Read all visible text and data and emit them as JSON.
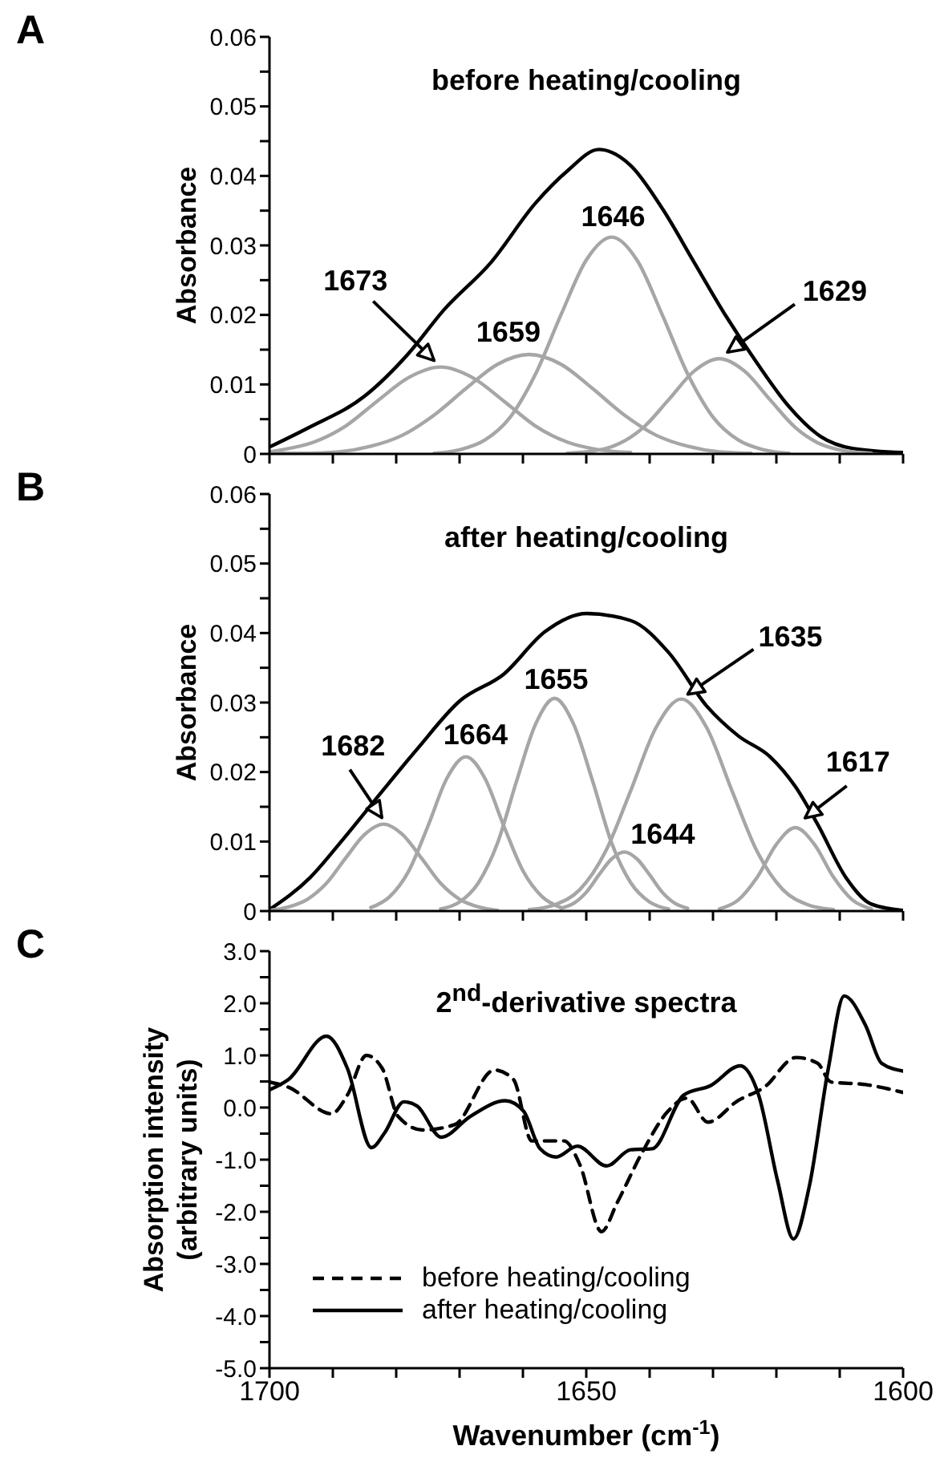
{
  "chart_data": [
    {
      "type": "line",
      "title": "before heating/cooling",
      "ylabel": "Absorbance",
      "tick_labels": "y",
      "xlim": [
        1700,
        1600
      ],
      "xticks": [
        1700,
        {
          "value": 1690,
          "label": null
        },
        {
          "value": 1680,
          "label": null
        },
        {
          "value": 1670,
          "label": null
        },
        {
          "value": 1660,
          "label": null
        },
        1650,
        {
          "value": 1640,
          "label": null
        },
        {
          "value": 1630,
          "label": null
        },
        {
          "value": 1620,
          "label": null
        },
        {
          "value": 1610,
          "label": null
        },
        1600
      ],
      "ylim": [
        0,
        0.06
      ],
      "yticks": [
        0,
        {
          "value": 0.005,
          "label": null
        },
        0.01,
        {
          "value": 0.015,
          "label": null
        },
        0.02,
        {
          "value": 0.025,
          "label": null
        },
        0.03,
        {
          "value": 0.035,
          "label": null
        },
        0.04,
        {
          "value": 0.045,
          "label": null
        },
        0.05,
        {
          "value": 0.055,
          "label": null
        },
        0.06
      ],
      "series": [
        {
          "color": "#000000",
          "x": [
            1700,
            1694,
            1685,
            1678,
            1672.5,
            1665,
            1658,
            1653,
            1648,
            1643,
            1638,
            1633,
            1628,
            1623,
            1618,
            1613,
            1608,
            1600
          ],
          "values": [
            0.001,
            0.0037,
            0.0083,
            0.0145,
            0.0207,
            0.0276,
            0.0361,
            0.0407,
            0.0438,
            0.0415,
            0.0353,
            0.0276,
            0.0199,
            0.013,
            0.0068,
            0.0025,
            0.0008,
            0.0002
          ]
        },
        {
          "color": "#a6a6a6",
          "x": [
            1700,
            1698,
            1693,
            1688,
            1683,
            1678,
            1673,
            1668,
            1663,
            1658,
            1653,
            1648,
            1643
          ],
          "values": [
            0.0003,
            0.0006,
            0.0017,
            0.004,
            0.0076,
            0.011,
            0.0125,
            0.011,
            0.0076,
            0.004,
            0.0017,
            0.0006,
            0.0002
          ]
        },
        {
          "color": "#a6a6a6",
          "x": [
            1700,
            1694,
            1689,
            1684,
            1679,
            1674,
            1669,
            1664,
            1659,
            1654,
            1649,
            1644,
            1639,
            1634,
            1629,
            1624
          ],
          "values": [
            0.0001,
            0.0001,
            0.0003,
            0.0011,
            0.0027,
            0.0056,
            0.0094,
            0.0129,
            0.0143,
            0.0129,
            0.0094,
            0.0056,
            0.0027,
            0.0011,
            0.0003,
            0.0001
          ]
        },
        {
          "color": "#a6a6a6",
          "x": [
            1674,
            1670,
            1666,
            1662,
            1658,
            1654,
            1650,
            1646,
            1642,
            1638,
            1634,
            1630,
            1626,
            1622,
            1618
          ],
          "values": [
            0.0001,
            0.0006,
            0.002,
            0.0053,
            0.0115,
            0.02,
            0.0279,
            0.0312,
            0.0279,
            0.02,
            0.0115,
            0.0053,
            0.002,
            0.0006,
            0.0001
          ]
        },
        {
          "color": "#a6a6a6",
          "x": [
            1653,
            1649,
            1645,
            1641,
            1637,
            1633,
            1629,
            1625,
            1621,
            1617,
            1613,
            1609,
            1605
          ],
          "values": [
            0.0001,
            0.0004,
            0.0014,
            0.0038,
            0.0078,
            0.0119,
            0.0137,
            0.0119,
            0.0078,
            0.0038,
            0.0014,
            0.0004,
            0.0001
          ]
        }
      ],
      "annotations": [
        "A",
        {
          "text": "1673",
          "x": 1673,
          "y": 0.0125
        },
        {
          "text": "1659",
          "x": 1659,
          "y": 0.0143
        },
        {
          "text": "1646",
          "x": 1646,
          "y": 0.0312
        },
        {
          "text": "1629",
          "x": 1629,
          "y": 0.0137
        }
      ]
    },
    {
      "type": "line",
      "title": "after heating/cooling",
      "ylabel": "Absorbance",
      "tick_labels": "y",
      "xlim": [
        1700,
        1600
      ],
      "xticks": [
        1700,
        {
          "value": 1690,
          "label": null
        },
        {
          "value": 1680,
          "label": null
        },
        {
          "value": 1670,
          "label": null
        },
        {
          "value": 1660,
          "label": null
        },
        1650,
        {
          "value": 1640,
          "label": null
        },
        {
          "value": 1630,
          "label": null
        },
        {
          "value": 1620,
          "label": null
        },
        {
          "value": 1610,
          "label": null
        },
        1600
      ],
      "ylim": [
        0,
        0.06
      ],
      "yticks": [
        0,
        {
          "value": 0.005,
          "label": null
        },
        0.01,
        {
          "value": 0.015,
          "label": null
        },
        0.02,
        {
          "value": 0.025,
          "label": null
        },
        0.03,
        {
          "value": 0.035,
          "label": null
        },
        0.04,
        {
          "value": 0.045,
          "label": null
        },
        0.05,
        {
          "value": 0.055,
          "label": null
        },
        0.06
      ],
      "series": [
        {
          "color": "#000000",
          "x": [
            1700,
            1693.6,
            1688.5,
            1682.6,
            1676.7,
            1670,
            1663,
            1656.5,
            1650,
            1643,
            1637,
            1631,
            1626,
            1621,
            1617,
            1613.5,
            1609,
            1605,
            1600
          ],
          "values": [
            0.0002,
            0.0048,
            0.0102,
            0.0168,
            0.0233,
            0.0302,
            0.0341,
            0.0402,
            0.0428,
            0.0418,
            0.0372,
            0.0295,
            0.0252,
            0.0222,
            0.0179,
            0.0125,
            0.0048,
            0.001,
            0.0001
          ]
        },
        {
          "color": "#a6a6a6",
          "x": [
            1700,
            1697,
            1694,
            1691,
            1688,
            1685,
            1682,
            1679,
            1676,
            1673,
            1670,
            1667,
            1664
          ],
          "values": [
            0.0001,
            0.0006,
            0.0017,
            0.004,
            0.0076,
            0.011,
            0.0125,
            0.011,
            0.0076,
            0.004,
            0.0017,
            0.0006,
            0.0001
          ]
        },
        {
          "color": "#a6a6a6",
          "x": [
            1684,
            1681,
            1678,
            1675,
            1672,
            1669,
            1666,
            1663,
            1660,
            1657,
            1654
          ],
          "values": [
            0.0005,
            0.0021,
            0.0058,
            0.0122,
            0.0191,
            0.0222,
            0.0191,
            0.0122,
            0.0058,
            0.0021,
            0.0005
          ]
        },
        {
          "color": "#a6a6a6",
          "x": [
            1673,
            1670,
            1667,
            1664,
            1661,
            1658,
            1655,
            1652,
            1649,
            1646,
            1643,
            1640,
            1637
          ],
          "values": [
            0.0003,
            0.0013,
            0.0041,
            0.0098,
            0.0187,
            0.0269,
            0.0306,
            0.0269,
            0.0187,
            0.0098,
            0.0041,
            0.0013,
            0.0003
          ]
        },
        {
          "color": "#a6a6a6",
          "x": [
            1654,
            1652,
            1650,
            1648,
            1646,
            1644,
            1642,
            1640,
            1638,
            1636,
            1634
          ],
          "values": [
            0.0004,
            0.0011,
            0.0027,
            0.0052,
            0.0075,
            0.0085,
            0.0075,
            0.0052,
            0.0027,
            0.0011,
            0.0004
          ]
        },
        {
          "color": "#a6a6a6",
          "x": [
            1659,
            1655,
            1651,
            1647,
            1643,
            1639,
            1635,
            1631,
            1627,
            1623,
            1619,
            1615,
            1611
          ],
          "values": [
            0.0002,
            0.0009,
            0.0031,
            0.0085,
            0.0173,
            0.0264,
            0.0305,
            0.0264,
            0.0173,
            0.0085,
            0.0031,
            0.0009,
            0.0002
          ]
        },
        {
          "color": "#a6a6a6",
          "x": [
            1629,
            1626,
            1623,
            1620,
            1617,
            1614,
            1611,
            1608,
            1605
          ],
          "values": [
            0.0003,
            0.0016,
            0.0049,
            0.0096,
            0.012,
            0.0096,
            0.0049,
            0.0016,
            0.0003
          ]
        }
      ],
      "annotations": [
        "B",
        {
          "text": "1682",
          "x": 1682,
          "y": 0.0125
        },
        {
          "text": "1664",
          "x": 1669,
          "y": 0.0222
        },
        {
          "text": "1655",
          "x": 1655,
          "y": 0.0306
        },
        {
          "text": "1644",
          "x": 1644,
          "y": 0.0085
        },
        {
          "text": "1635",
          "x": 1635,
          "y": 0.0305
        },
        {
          "text": "1617",
          "x": 1617,
          "y": 0.012
        }
      ]
    },
    {
      "type": "line",
      "title": "2$^{nd}$-derivative spectra",
      "xlabel": "Wavenumber (cm$^{-1}$)",
      "ylabel": "Absorption intensity\n(arbitrary units)",
      "xlim": [
        1700,
        1600
      ],
      "xticks": [
        1700,
        {
          "value": 1690,
          "label": null
        },
        {
          "value": 1680,
          "label": null
        },
        {
          "value": 1670,
          "label": null
        },
        {
          "value": 1660,
          "label": null
        },
        1650,
        {
          "value": 1640,
          "label": null
        },
        {
          "value": 1630,
          "label": null
        },
        {
          "value": 1620,
          "label": null
        },
        {
          "value": 1610,
          "label": null
        },
        1600
      ],
      "ylim": [
        -5,
        3
      ],
      "yticks": [
        {
          "value": 3,
          "label": "3.0"
        },
        {
          "value": 2.5,
          "label": null
        },
        {
          "value": 2,
          "label": "2.0"
        },
        {
          "value": 1.5,
          "label": null
        },
        {
          "value": 1,
          "label": "1.0"
        },
        {
          "value": 0.5,
          "label": null
        },
        {
          "value": 0,
          "label": "0.0"
        },
        {
          "value": -0.5,
          "label": null
        },
        {
          "value": -1,
          "label": "-1.0"
        },
        {
          "value": -1.5,
          "label": null
        },
        {
          "value": -2,
          "label": "-2.0"
        },
        {
          "value": -2.5,
          "label": null
        },
        {
          "value": -3,
          "label": "-3.0"
        },
        {
          "value": -3.5,
          "label": null
        },
        {
          "value": -4,
          "label": "-4.0"
        },
        {
          "value": -4.5,
          "label": null
        },
        {
          "value": -5,
          "label": "-5.0"
        }
      ],
      "legend": "bottom left",
      "series": [
        {
          "name": "before heating/cooling",
          "color": "#000000",
          "line_style": "dashed",
          "x": [
            1700,
            1697,
            1690.2,
            1687.7,
            1684.7,
            1682.2,
            1679.7,
            1675.9,
            1670.8,
            1664.5,
            1661.5,
            1658.6,
            1653.5,
            1651,
            1647.6,
            1645.1,
            1641.3,
            1637.1,
            1634.1,
            1630.8,
            1626.1,
            1621.9,
            1616.9,
            1613.5,
            1611.4,
            1605.9,
            1600
          ],
          "values": [
            0.49,
            0.39,
            -0.12,
            0.24,
            1.0,
            0.75,
            -0.17,
            -0.43,
            -0.33,
            0.72,
            0.54,
            -0.64,
            -0.64,
            -1.1,
            -2.38,
            -1.82,
            -0.89,
            -0.07,
            0.18,
            -0.28,
            0.13,
            0.39,
            0.96,
            0.85,
            0.49,
            0.44,
            0.29
          ]
        },
        {
          "name": "after heating/cooling",
          "color": "#000000",
          "line_style": "solid",
          "x": [
            1700,
            1697,
            1691,
            1687.7,
            1683.9,
            1681.8,
            1678.8,
            1676.7,
            1672.9,
            1668.3,
            1662.8,
            1659.9,
            1657.3,
            1654.8,
            1651.4,
            1646.8,
            1643,
            1639.6,
            1634.6,
            1630.4,
            1625.7,
            1622.8,
            1619.8,
            1617.3,
            1614.8,
            1611.8,
            1609.3,
            1605.9,
            1603.4,
            1600
          ],
          "values": [
            0.34,
            0.54,
            1.37,
            0.75,
            -0.77,
            -0.48,
            0.11,
            0.03,
            -0.57,
            -0.17,
            0.13,
            -0.07,
            -0.79,
            -0.95,
            -0.74,
            -1.12,
            -0.81,
            -0.79,
            0.24,
            0.42,
            0.8,
            0.24,
            -1.41,
            -2.52,
            -1.51,
            0.75,
            2.14,
            1.57,
            0.85,
            0.7
          ]
        }
      ],
      "annotations": [
        "C"
      ]
    }
  ]
}
